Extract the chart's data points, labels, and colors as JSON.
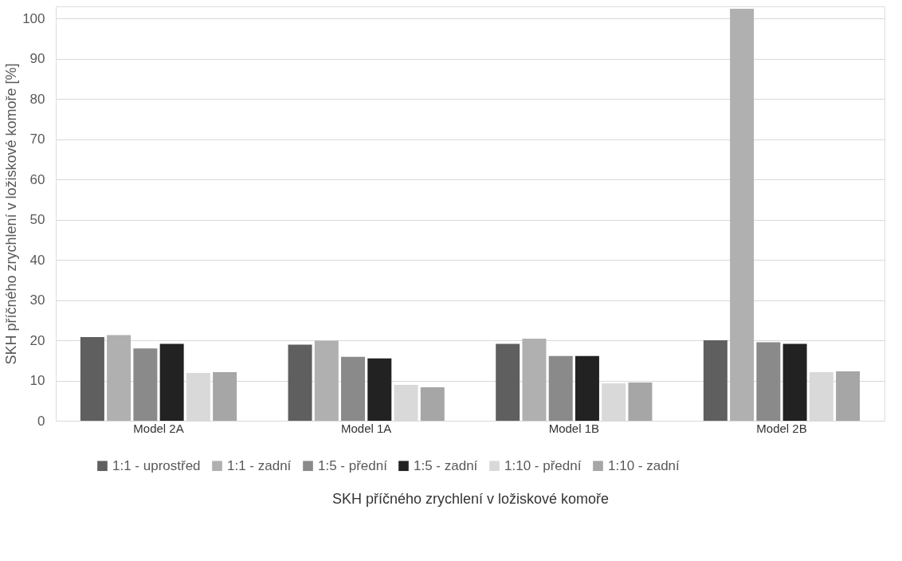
{
  "chart_data": {
    "type": "bar",
    "xlabel": "SKH příčného zrychlení v ložiskové komoře",
    "ylabel": "SKH příčného zrychlení v ložiskové komoře [%]",
    "categories": [
      "Model 2A",
      "Model 1A",
      "Model 1B",
      "Model 2B"
    ],
    "series": [
      {
        "name": "1:1 - uprostřed",
        "color": "#5f5f5f",
        "values": [
          20.8,
          18.9,
          19.1,
          20.0
        ]
      },
      {
        "name": "1:1 - zadní",
        "color": "#b0b0b0",
        "values": [
          21.3,
          19.9,
          20.4,
          102.4
        ]
      },
      {
        "name": "1:5 - přední",
        "color": "#8a8a8a",
        "values": [
          18.0,
          15.9,
          16.1,
          19.5
        ]
      },
      {
        "name": "1:5 - zadní",
        "color": "#222222",
        "values": [
          19.1,
          15.5,
          16.1,
          19.1
        ]
      },
      {
        "name": "1:10 - přední",
        "color": "#d9d9d9",
        "values": [
          11.9,
          8.9,
          9.3,
          12.1
        ]
      },
      {
        "name": "1:10 - zadní",
        "color": "#a6a6a6",
        "values": [
          12.1,
          8.3,
          9.5,
          12.3
        ]
      }
    ],
    "ylim": [
      0,
      103
    ],
    "yticks": [
      0,
      10,
      20,
      30,
      40,
      50,
      60,
      70,
      80,
      90,
      100
    ],
    "grid": "y",
    "legend": "bottom"
  }
}
